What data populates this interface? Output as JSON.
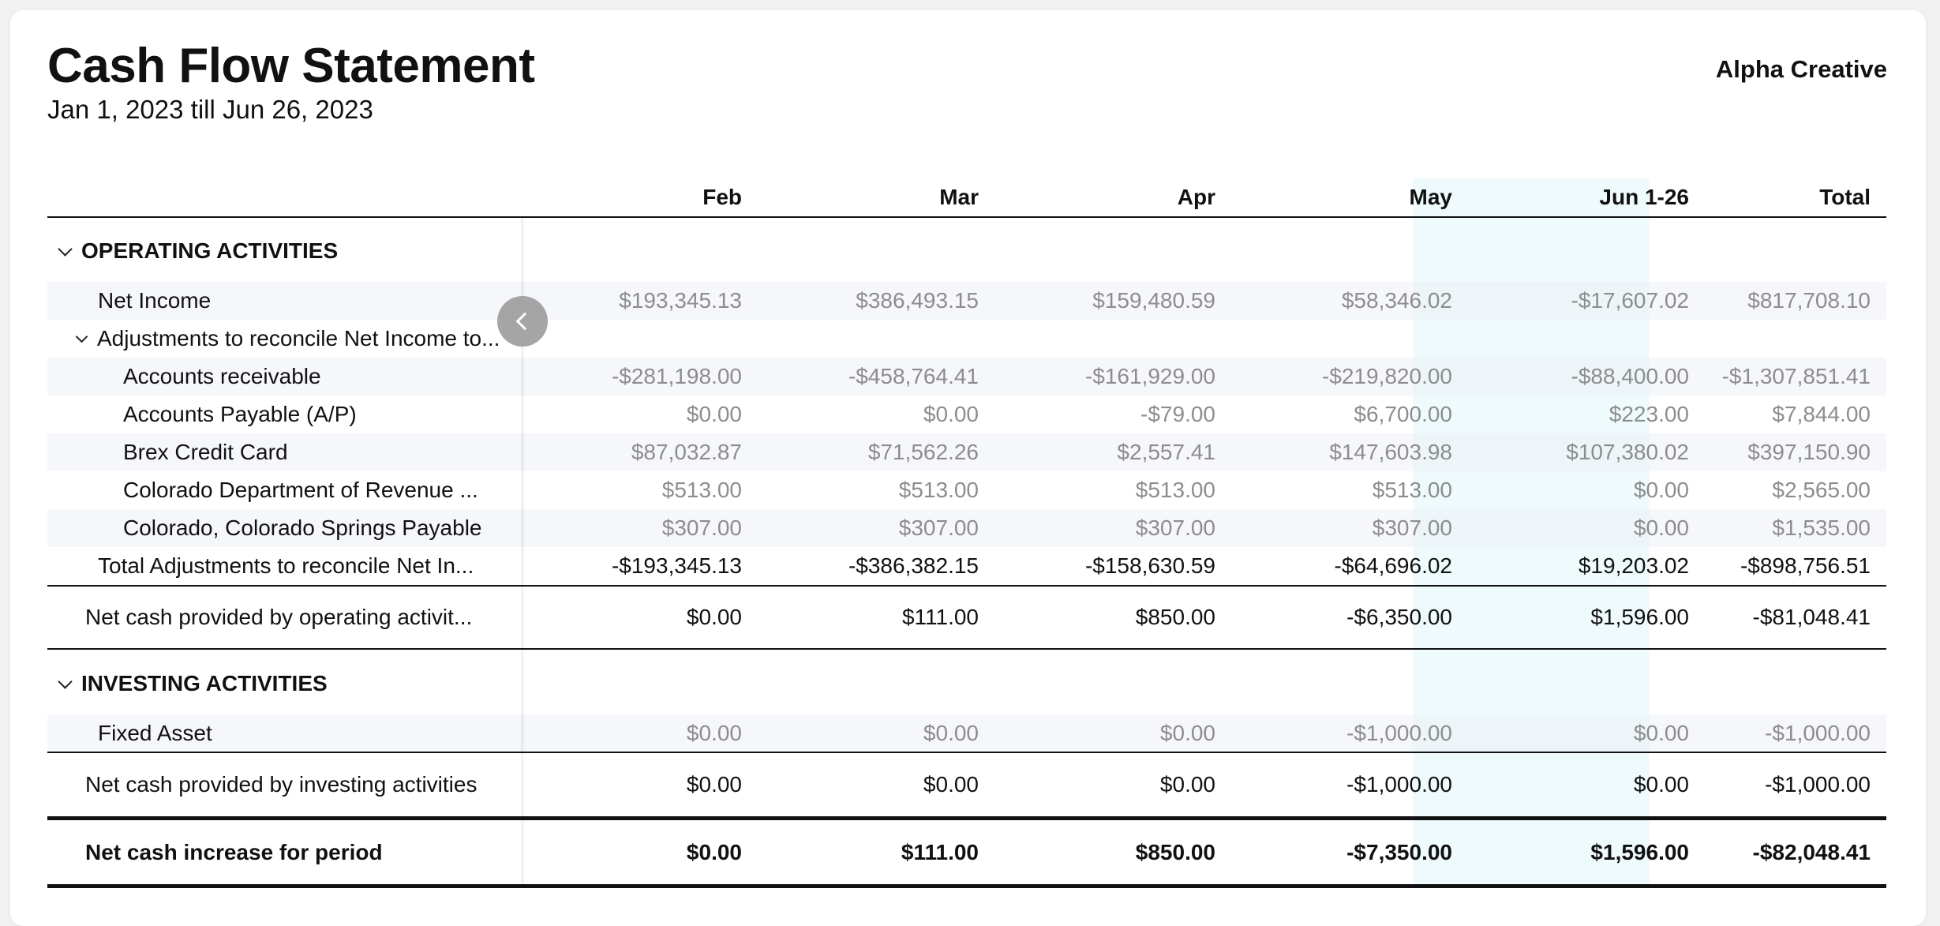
{
  "report": {
    "title": "Cash Flow Statement",
    "date_range": "Jan 1, 2023 till Jun 26, 2023",
    "company": "Alpha Creative"
  },
  "columns": [
    "Feb",
    "Mar",
    "Apr",
    "May",
    "Jun 1-26",
    "Total"
  ],
  "highlight_color": "#eefafc",
  "sections": {
    "operating": {
      "title": "OPERATING ACTIVITIES",
      "net_income": {
        "label": "Net Income",
        "values": [
          "$193,345.13",
          "$386,493.15",
          "$159,480.59",
          "$58,346.02",
          "-$17,607.02",
          "$817,708.10"
        ]
      },
      "adjustments_title": "Adjustments to reconcile Net Income to...",
      "adjustments": [
        {
          "label": "Accounts receivable",
          "values": [
            "-$281,198.00",
            "-$458,764.41",
            "-$161,929.00",
            "-$219,820.00",
            "-$88,400.00",
            "-$1,307,851.41"
          ]
        },
        {
          "label": "Accounts Payable (A/P)",
          "values": [
            "$0.00",
            "$0.00",
            "-$79.00",
            "$6,700.00",
            "$223.00",
            "$7,844.00"
          ]
        },
        {
          "label": "Brex Credit Card",
          "values": [
            "$87,032.87",
            "$71,562.26",
            "$2,557.41",
            "$147,603.98",
            "$107,380.02",
            "$397,150.90"
          ]
        },
        {
          "label": "Colorado Department of Revenue ...",
          "values": [
            "$513.00",
            "$513.00",
            "$513.00",
            "$513.00",
            "$0.00",
            "$2,565.00"
          ]
        },
        {
          "label": "Colorado, Colorado Springs Payable",
          "values": [
            "$307.00",
            "$307.00",
            "$307.00",
            "$307.00",
            "$0.00",
            "$1,535.00"
          ]
        }
      ],
      "total_adjustments": {
        "label": "Total Adjustments to reconcile Net In...",
        "values": [
          "-$193,345.13",
          "-$386,382.15",
          "-$158,630.59",
          "-$64,696.02",
          "$19,203.02",
          "-$898,756.51"
        ]
      },
      "net_cash": {
        "label": "Net cash provided by operating activit...",
        "values": [
          "$0.00",
          "$111.00",
          "$850.00",
          "-$6,350.00",
          "$1,596.00",
          "-$81,048.41"
        ]
      }
    },
    "investing": {
      "title": "INVESTING ACTIVITIES",
      "fixed_asset": {
        "label": "Fixed Asset",
        "values": [
          "$0.00",
          "$0.00",
          "$0.00",
          "-$1,000.00",
          "$0.00",
          "-$1,000.00"
        ]
      },
      "net_cash": {
        "label": "Net cash provided by investing activities",
        "values": [
          "$0.00",
          "$0.00",
          "$0.00",
          "-$1,000.00",
          "$0.00",
          "-$1,000.00"
        ]
      }
    }
  },
  "net_increase": {
    "label": "Net cash increase for period",
    "values": [
      "$0.00",
      "$111.00",
      "$850.00",
      "-$7,350.00",
      "$1,596.00",
      "-$82,048.41"
    ]
  }
}
